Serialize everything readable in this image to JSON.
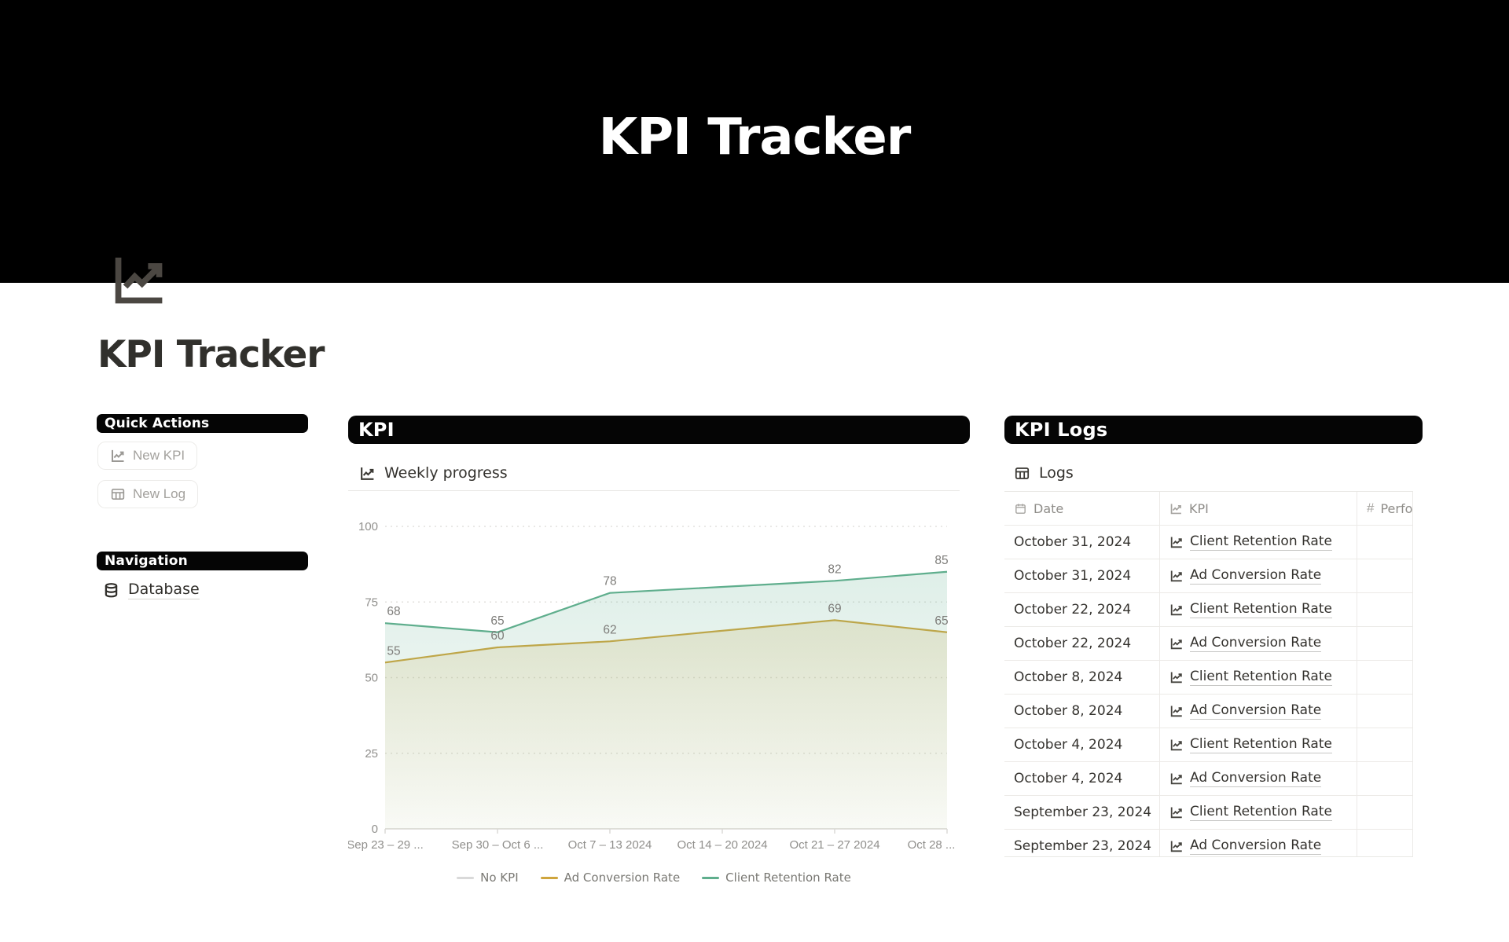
{
  "cover": {
    "title": "KPI Tracker"
  },
  "page": {
    "title": "KPI Tracker",
    "icon": "chart-line-icon"
  },
  "sidebar": {
    "quick_actions": {
      "title": "Quick Actions",
      "buttons": [
        {
          "label": "New KPI",
          "icon": "chart-line-icon"
        },
        {
          "label": "New Log",
          "icon": "table-icon"
        }
      ]
    },
    "navigation": {
      "title": "Navigation",
      "items": [
        {
          "label": "Database",
          "icon": "database-icon"
        }
      ]
    }
  },
  "kpi_section": {
    "title": "KPI",
    "subtitle": "Weekly progress",
    "subtitle_icon": "chart-line-icon"
  },
  "chart_data": {
    "type": "area",
    "title": "Weekly progress",
    "categories": [
      "Sep 23 – 29 ...",
      "Sep 30 – Oct 6 ...",
      "Oct 7 – 13 2024",
      "Oct 14 – 20 2024",
      "Oct 21 – 27 2024",
      "Oct 28 ..."
    ],
    "series": [
      {
        "name": "No KPI",
        "color": "#d9d9d9",
        "values": [
          null,
          null,
          null,
          null,
          null,
          null
        ]
      },
      {
        "name": "Ad Conversion Rate",
        "color": "#cfa53d",
        "values": [
          55,
          60,
          62,
          null,
          69,
          65
        ]
      },
      {
        "name": "Client Retention Rate",
        "color": "#5fae8d",
        "values": [
          68,
          65,
          78,
          null,
          82,
          85
        ]
      }
    ],
    "ylim": [
      0,
      100
    ],
    "yticks": [
      0,
      25,
      50,
      75,
      100
    ],
    "grid": "horizontal-dotted",
    "legend_position": "bottom",
    "point_labels": true
  },
  "logs_section": {
    "title": "KPI Logs",
    "table_title": "Logs",
    "table_icon": "table-icon",
    "columns": [
      {
        "label": "Date",
        "icon": "calendar-icon"
      },
      {
        "label": "KPI",
        "icon": "chart-line-icon"
      },
      {
        "label": "Performance",
        "icon": "hash-icon"
      }
    ],
    "rows": [
      {
        "date": "October 31, 2024",
        "kpi": "Client Retention Rate",
        "performance": ""
      },
      {
        "date": "October 31, 2024",
        "kpi": "Ad Conversion Rate",
        "performance": ""
      },
      {
        "date": "October 22, 2024",
        "kpi": "Client Retention Rate",
        "performance": ""
      },
      {
        "date": "October 22, 2024",
        "kpi": "Ad Conversion Rate",
        "performance": ""
      },
      {
        "date": "October 8, 2024",
        "kpi": "Client Retention Rate",
        "performance": ""
      },
      {
        "date": "October 8, 2024",
        "kpi": "Ad Conversion Rate",
        "performance": ""
      },
      {
        "date": "October 4, 2024",
        "kpi": "Client Retention Rate",
        "performance": ""
      },
      {
        "date": "October 4, 2024",
        "kpi": "Ad Conversion Rate",
        "performance": ""
      },
      {
        "date": "September 23, 2024",
        "kpi": "Client Retention Rate",
        "performance": ""
      },
      {
        "date": "September 23, 2024",
        "kpi": "Ad Conversion Rate",
        "performance": ""
      }
    ]
  },
  "colors": {
    "cover_bg": "#000000",
    "pill_bg": "#050505",
    "ad_conversion": "#cfa53d",
    "client_retention": "#5fae8d",
    "no_kpi": "#d9d9d9",
    "muted_text": "#8f8d89"
  }
}
